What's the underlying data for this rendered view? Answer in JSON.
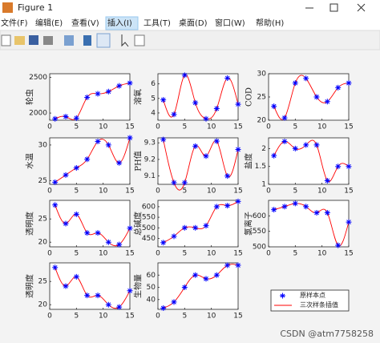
{
  "window": {
    "title": "Figure 1",
    "menu": [
      "文件(F)",
      "编辑(E)",
      "查看(V)",
      "插入(I)",
      "工具(T)",
      "桌面(D)",
      "窗口(W)",
      "帮助(H)"
    ]
  },
  "legend": {
    "entries": [
      "原样本点",
      "三次样条插值"
    ],
    "marker_color": "#0000ff",
    "line_color": "#ff0000"
  },
  "watermark": "CSDN @atm7758258",
  "chart_data": [
    {
      "type": "line",
      "ylabel": "轮虫",
      "x": [
        1,
        3,
        5,
        7,
        9,
        11,
        13,
        15
      ],
      "values": [
        1920,
        1950,
        1930,
        2220,
        2270,
        2300,
        2380,
        2420
      ],
      "xlim": [
        0,
        15
      ],
      "xticks": [
        0,
        5,
        10,
        15
      ],
      "ylim": [
        1900,
        2550
      ],
      "yticks": [
        2000,
        2500
      ]
    },
    {
      "type": "line",
      "ylabel": "溶氧",
      "x": [
        1,
        3,
        5,
        7,
        9,
        11,
        13,
        15
      ],
      "values": [
        4.9,
        3.9,
        6.6,
        4.7,
        3.6,
        4.3,
        6.4,
        4.6
      ],
      "xlim": [
        0,
        15
      ],
      "xticks": [
        0,
        5,
        10,
        15
      ],
      "ylim": [
        3.5,
        6.7
      ],
      "yticks": [
        4,
        5,
        6
      ]
    },
    {
      "type": "line",
      "ylabel": "COD",
      "x": [
        1,
        3,
        5,
        7,
        9,
        11,
        13,
        15
      ],
      "values": [
        23,
        20.5,
        28,
        29,
        25,
        24,
        27,
        28
      ],
      "xlim": [
        0,
        15
      ],
      "xticks": [
        0,
        5,
        10,
        15
      ],
      "ylim": [
        20,
        30
      ],
      "yticks": [
        20,
        25,
        30
      ]
    },
    {
      "type": "line",
      "ylabel": "水温",
      "x": [
        1,
        3,
        5,
        7,
        9,
        11,
        13,
        15
      ],
      "values": [
        24.8,
        25.8,
        26.8,
        28,
        30.5,
        30,
        27.5,
        31
      ],
      "xlim": [
        0,
        15
      ],
      "xticks": [
        0,
        5,
        10,
        15
      ],
      "ylim": [
        24.5,
        31
      ],
      "yticks": [
        25,
        30
      ]
    },
    {
      "type": "line",
      "ylabel": "PH值",
      "x": [
        1,
        3,
        5,
        7,
        9,
        11,
        13,
        15
      ],
      "values": [
        9.32,
        9.06,
        9.06,
        9.28,
        9.22,
        9.31,
        9.1,
        9.26
      ],
      "xlim": [
        0,
        15
      ],
      "xticks": [
        0,
        5,
        10,
        15
      ],
      "ylim": [
        9.05,
        9.33
      ],
      "yticks": [
        9.1,
        9.2,
        9.3
      ]
    },
    {
      "type": "line",
      "ylabel": "盐度",
      "x": [
        1,
        3,
        5,
        7,
        9,
        11,
        13,
        15
      ],
      "values": [
        1.8,
        2.2,
        2,
        2.1,
        2.1,
        1.1,
        1.5,
        1.5
      ],
      "xlim": [
        0,
        15
      ],
      "xticks": [
        0,
        5,
        10,
        15
      ],
      "ylim": [
        1,
        2.3
      ],
      "yticks": [
        1,
        1.5,
        2
      ]
    },
    {
      "type": "line",
      "ylabel": "透明度",
      "x": [
        1,
        3,
        5,
        7,
        9,
        11,
        13,
        15
      ],
      "values": [
        28,
        24,
        26,
        22,
        22,
        20,
        19.5,
        23
      ],
      "xlim": [
        0,
        15
      ],
      "xticks": [
        0,
        5,
        10,
        15
      ],
      "ylim": [
        19,
        29
      ],
      "yticks": [
        20,
        25
      ]
    },
    {
      "type": "line",
      "ylabel": "总碱度",
      "x": [
        1,
        3,
        5,
        7,
        9,
        11,
        13,
        15
      ],
      "values": [
        430,
        460,
        500,
        500,
        510,
        600,
        605,
        625
      ],
      "xlim": [
        0,
        15
      ],
      "xticks": [
        0,
        5,
        10,
        15
      ],
      "ylim": [
        410,
        630
      ],
      "yticks": [
        450,
        500,
        550,
        600
      ]
    },
    {
      "type": "line",
      "ylabel": "氯离子",
      "x": [
        1,
        3,
        5,
        7,
        9,
        11,
        13,
        15
      ],
      "values": [
        620,
        630,
        640,
        630,
        610,
        610,
        505,
        580
      ],
      "xlim": [
        0,
        15
      ],
      "xticks": [
        0,
        5,
        10,
        15
      ],
      "ylim": [
        500,
        650
      ],
      "yticks": [
        500,
        550,
        600
      ]
    },
    {
      "type": "line",
      "ylabel": "透明度",
      "x": [
        1,
        3,
        5,
        7,
        9,
        11,
        13,
        15
      ],
      "values": [
        28,
        24,
        26,
        22,
        22,
        20,
        19.5,
        23
      ],
      "xlim": [
        0,
        15
      ],
      "xticks": [
        0,
        5,
        10,
        15
      ],
      "ylim": [
        19,
        29
      ],
      "yticks": [
        20,
        25
      ]
    },
    {
      "type": "line",
      "ylabel": "生物量",
      "x": [
        1,
        3,
        5,
        7,
        9,
        11,
        13,
        15
      ],
      "values": [
        33,
        38,
        50,
        60,
        57,
        60,
        68,
        68
      ],
      "xlim": [
        0,
        15
      ],
      "xticks": [
        0,
        5,
        10,
        15
      ],
      "ylim": [
        32,
        70
      ],
      "yticks": [
        40,
        50,
        60
      ]
    }
  ]
}
